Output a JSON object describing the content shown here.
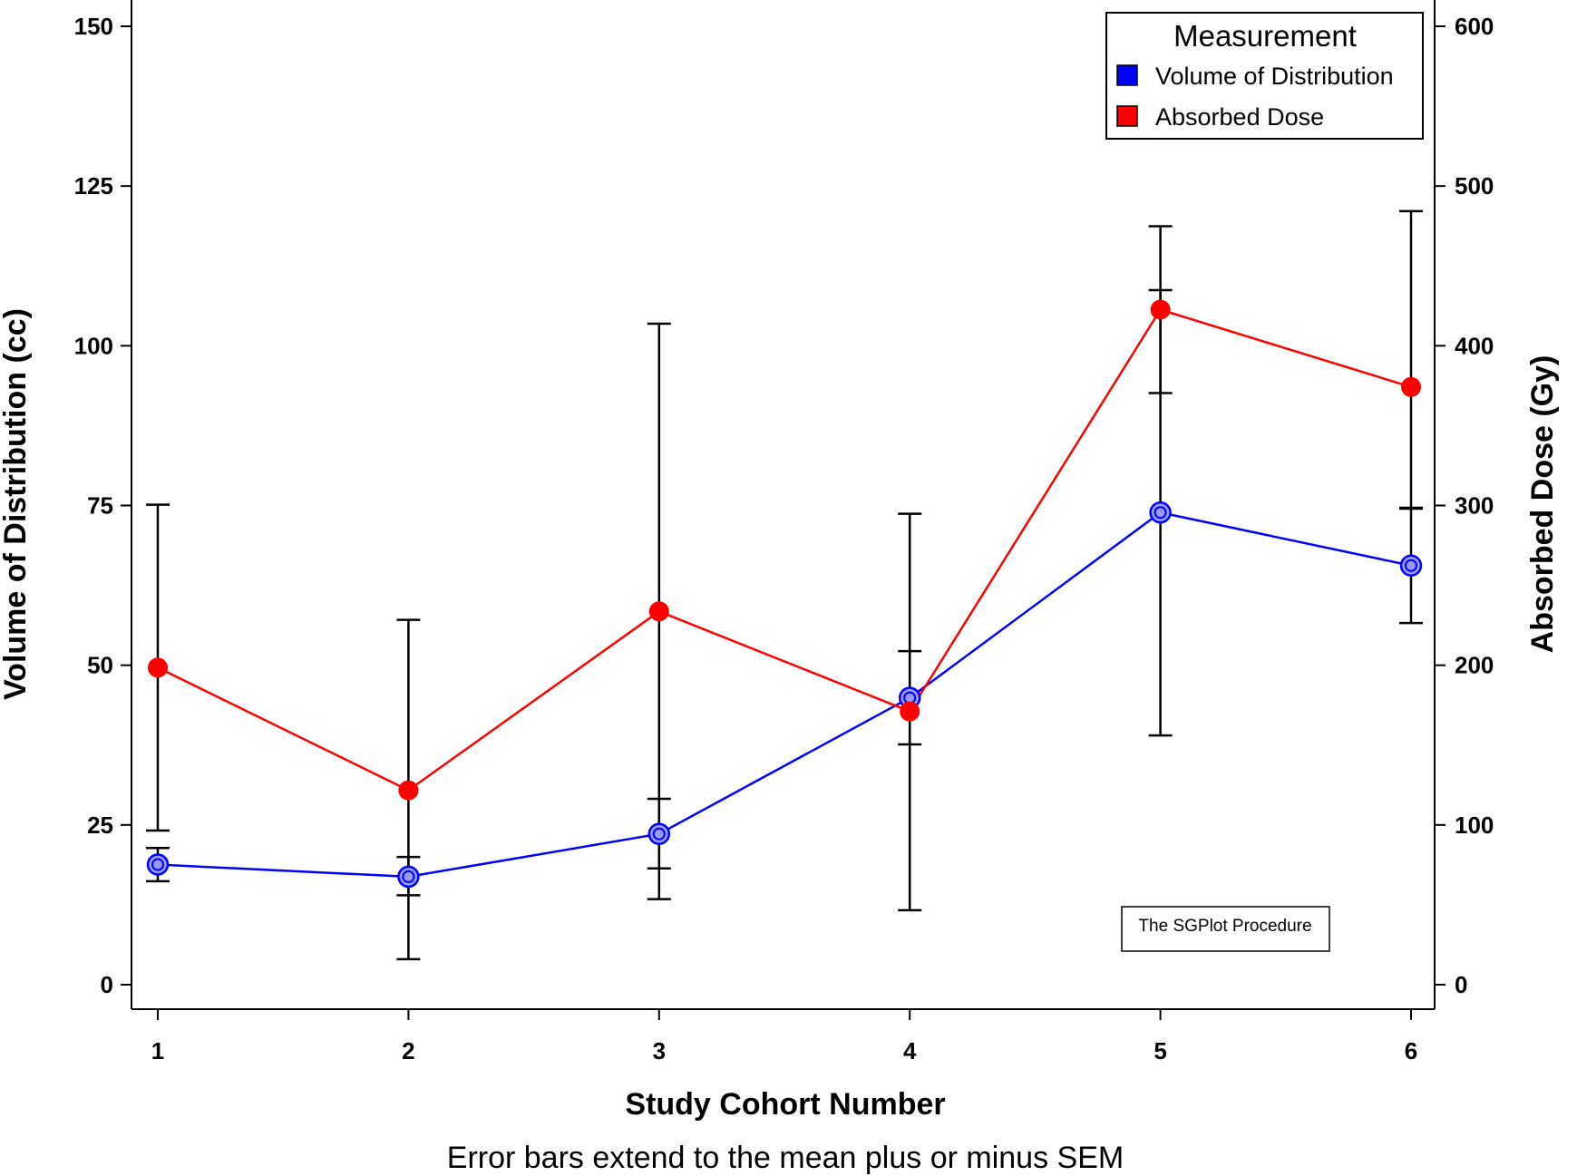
{
  "chart_data": {
    "type": "line",
    "xlabel": "Study Cohort Number",
    "ylabel": "Volume of Distribution (cc)",
    "y2label": "Absorbed Dose (Gy)",
    "footnote": "Error bars extend to the mean plus or minus SEM",
    "x": [
      1,
      2,
      3,
      4,
      5,
      6
    ],
    "x_ticks": [
      "1",
      "2",
      "3",
      "4",
      "5",
      "6"
    ],
    "ylim": [
      0,
      150
    ],
    "y_ticks": [
      "0",
      "25",
      "50",
      "75",
      "100",
      "125",
      "150"
    ],
    "y2lim": [
      0,
      600
    ],
    "y2_ticks": [
      "0",
      "100",
      "200",
      "300",
      "400",
      "500",
      "600"
    ],
    "legend": {
      "title": "Measurement",
      "position": "top-right",
      "entries": [
        "Volume of Distribution",
        "Absorbed Dose"
      ]
    },
    "series": [
      {
        "name": "Volume of Distribution",
        "axis": "left",
        "color": "#0000ff",
        "values": [
          18.8,
          16.9,
          23.6,
          44.9,
          73.9,
          65.6
        ],
        "lower": [
          16.2,
          14.0,
          18.2,
          37.6,
          39.0,
          56.6
        ],
        "upper": [
          21.4,
          20.0,
          29.1,
          52.2,
          108.7,
          74.5
        ]
      },
      {
        "name": "Absorbed Dose",
        "axis": "right",
        "color": "#ff0000",
        "values": [
          198.5,
          121.7,
          233.7,
          171.1,
          422.6,
          374.2
        ],
        "lower": [
          96.5,
          16.0,
          53.6,
          46.6,
          370.4,
          298.6
        ],
        "upper": [
          300.5,
          228.4,
          413.8,
          294.8,
          474.8,
          484.3
        ]
      }
    ],
    "annotation": "The SGPlot Procedure"
  }
}
